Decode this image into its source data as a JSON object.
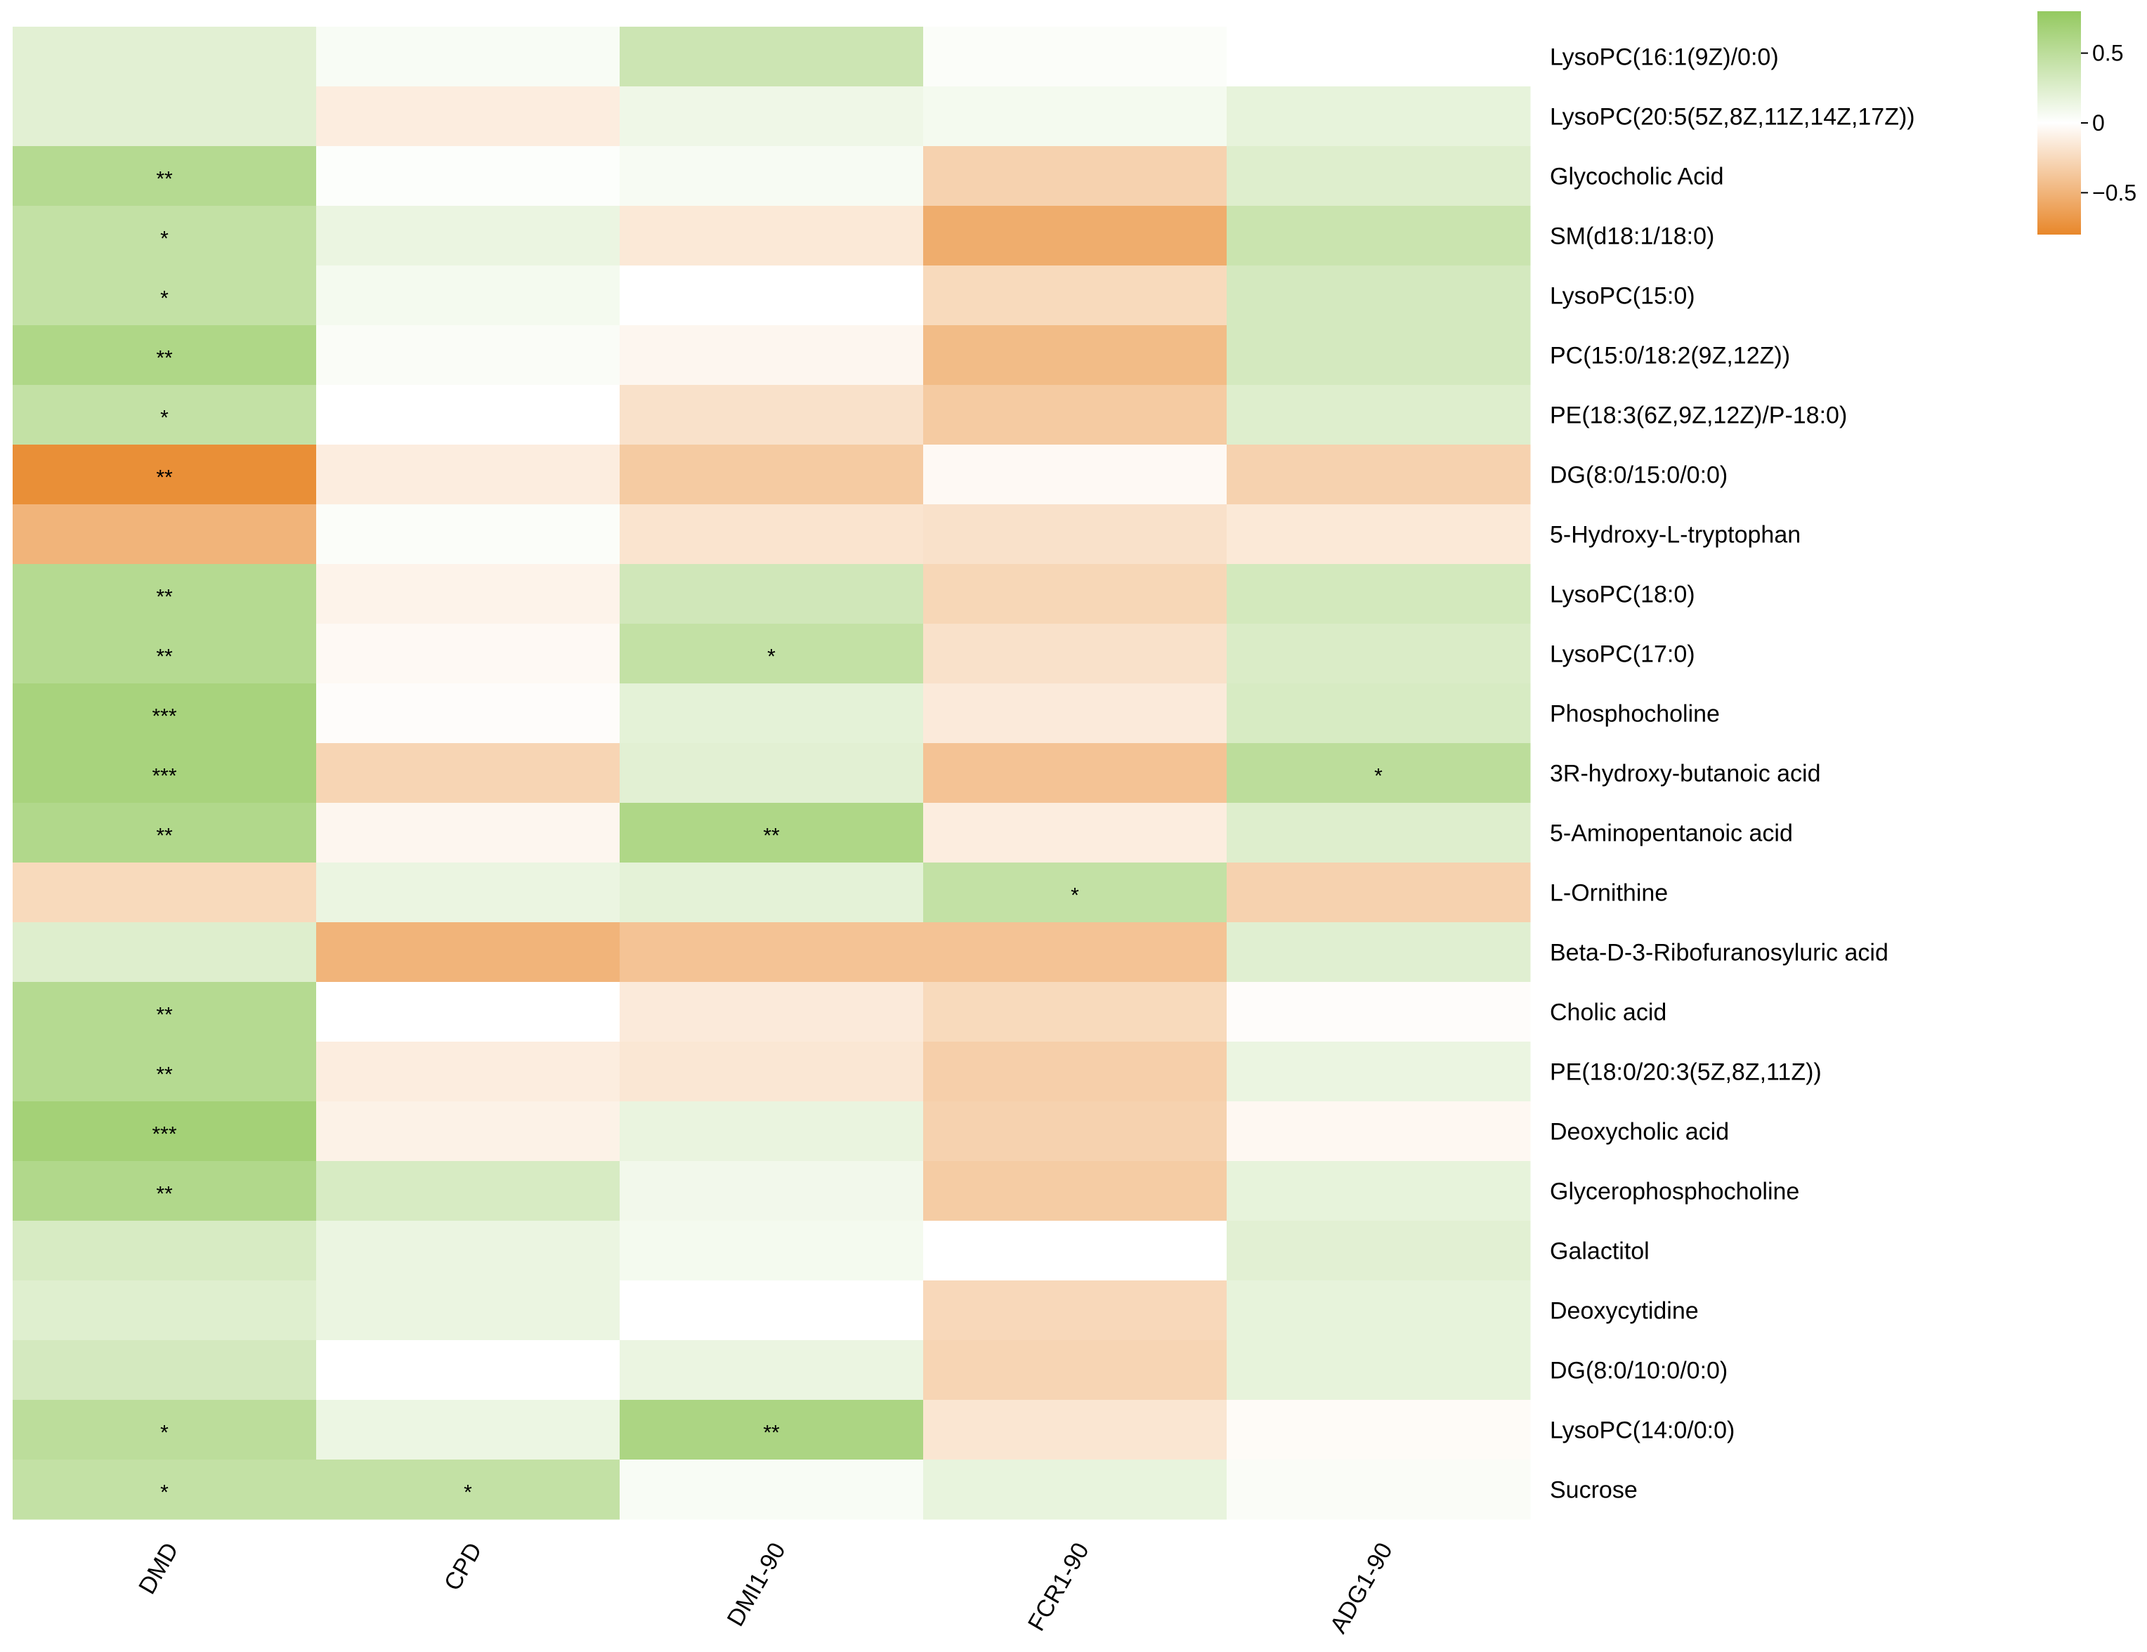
{
  "chart_data": {
    "type": "heatmap",
    "title": "",
    "xlabel": "",
    "ylabel": "",
    "columns": [
      "DMD",
      "CPD",
      "DMI1-90",
      "FCR1-90",
      "ADG1-90"
    ],
    "rows": [
      "LysoPC(16:1(9Z)/0:0)",
      "LysoPC(20:5(5Z,8Z,11Z,14Z,17Z))",
      "Glycocholic Acid",
      "SM(d18:1/18:0)",
      "LysoPC(15:0)",
      "PC(15:0/18:2(9Z,12Z))",
      "PE(18:3(6Z,9Z,12Z)/P-18:0)",
      "DG(8:0/15:0/0:0)",
      "5-Hydroxy-L-tryptophan",
      "LysoPC(18:0)",
      "LysoPC(17:0)",
      "Phosphocholine",
      "3R-hydroxy-butanoic acid",
      "5-Aminopentanoic acid",
      "L-Ornithine",
      "Beta-D-3-Ribofuranosyluric acid",
      "Cholic acid",
      "PE(18:0/20:3(5Z,8Z,11Z))",
      "Deoxycholic acid",
      "Glycerophosphocholine",
      "Galactitol",
      "Deoxycytidine",
      "DG(8:0/10:0/0:0)",
      "LysoPC(14:0/0:0)",
      "Sucrose"
    ],
    "values": [
      [
        0.22,
        0.05,
        0.38,
        0.03,
        0.0
      ],
      [
        0.22,
        -0.12,
        0.12,
        0.08,
        0.18
      ],
      [
        0.55,
        0.02,
        0.06,
        -0.3,
        0.25
      ],
      [
        0.45,
        0.15,
        -0.15,
        -0.55,
        0.4
      ],
      [
        0.45,
        0.08,
        0.0,
        -0.25,
        0.32
      ],
      [
        0.6,
        0.04,
        -0.06,
        -0.45,
        0.32
      ],
      [
        0.45,
        0.0,
        -0.2,
        -0.35,
        0.25
      ],
      [
        -0.75,
        -0.12,
        -0.35,
        -0.04,
        -0.3
      ],
      [
        -0.5,
        0.03,
        -0.18,
        -0.2,
        -0.15
      ],
      [
        0.55,
        -0.08,
        0.35,
        -0.27,
        0.33
      ],
      [
        0.55,
        -0.04,
        0.45,
        -0.2,
        0.28
      ],
      [
        0.65,
        -0.02,
        0.2,
        -0.14,
        0.3
      ],
      [
        0.65,
        -0.28,
        0.22,
        -0.4,
        0.5
      ],
      [
        0.58,
        -0.06,
        0.6,
        -0.12,
        0.25
      ],
      [
        -0.25,
        0.15,
        0.2,
        0.45,
        -0.3
      ],
      [
        0.25,
        -0.5,
        -0.4,
        -0.4,
        0.23
      ],
      [
        0.55,
        0.0,
        -0.14,
        -0.25,
        -0.02
      ],
      [
        0.55,
        -0.12,
        -0.16,
        -0.32,
        0.15
      ],
      [
        0.68,
        -0.09,
        0.16,
        -0.3,
        -0.05
      ],
      [
        0.58,
        0.3,
        0.1,
        -0.34,
        0.18
      ],
      [
        0.3,
        0.15,
        0.08,
        0.0,
        0.22
      ],
      [
        0.24,
        0.15,
        0.0,
        -0.26,
        0.18
      ],
      [
        0.32,
        0.0,
        0.15,
        -0.28,
        0.18
      ],
      [
        0.5,
        0.14,
        0.62,
        -0.17,
        -0.03
      ],
      [
        0.45,
        0.45,
        0.05,
        0.17,
        0.04
      ]
    ],
    "significance": [
      [
        "",
        "",
        "",
        "",
        ""
      ],
      [
        "",
        "",
        "",
        "",
        ""
      ],
      [
        "**",
        "",
        "",
        "",
        ""
      ],
      [
        "*",
        "",
        "",
        "",
        ""
      ],
      [
        "*",
        "",
        "",
        "",
        ""
      ],
      [
        "**",
        "",
        "",
        "",
        ""
      ],
      [
        "*",
        "",
        "",
        "",
        ""
      ],
      [
        "**",
        "",
        "",
        "",
        ""
      ],
      [
        "",
        "",
        "",
        "",
        ""
      ],
      [
        "**",
        "",
        "",
        "",
        ""
      ],
      [
        "**",
        "",
        "*",
        "",
        ""
      ],
      [
        "***",
        "",
        "",
        "",
        ""
      ],
      [
        "***",
        "",
        "",
        "",
        "*"
      ],
      [
        "**",
        "",
        "**",
        "",
        ""
      ],
      [
        "",
        "",
        "",
        "*",
        ""
      ],
      [
        "",
        "",
        "",
        "",
        ""
      ],
      [
        "**",
        "",
        "",
        "",
        ""
      ],
      [
        "**",
        "",
        "",
        "",
        ""
      ],
      [
        "***",
        "",
        "",
        "",
        ""
      ],
      [
        "**",
        "",
        "",
        "",
        ""
      ],
      [
        "",
        "",
        "",
        "",
        ""
      ],
      [
        "",
        "",
        "",
        "",
        ""
      ],
      [
        "",
        "",
        "",
        "",
        ""
      ],
      [
        "*",
        "",
        "**",
        "",
        ""
      ],
      [
        "*",
        "*",
        "",
        "",
        ""
      ]
    ],
    "colorbar": {
      "range": [
        -0.8,
        0.8
      ],
      "ticks": [
        0.5,
        0,
        -0.5
      ],
      "tick_labels": [
        "0.5",
        "0",
        "−0.5"
      ],
      "low_color": "#e8872a",
      "mid_color": "#ffffff",
      "high_color": "#94c95f"
    },
    "legend_position": "top-right"
  }
}
